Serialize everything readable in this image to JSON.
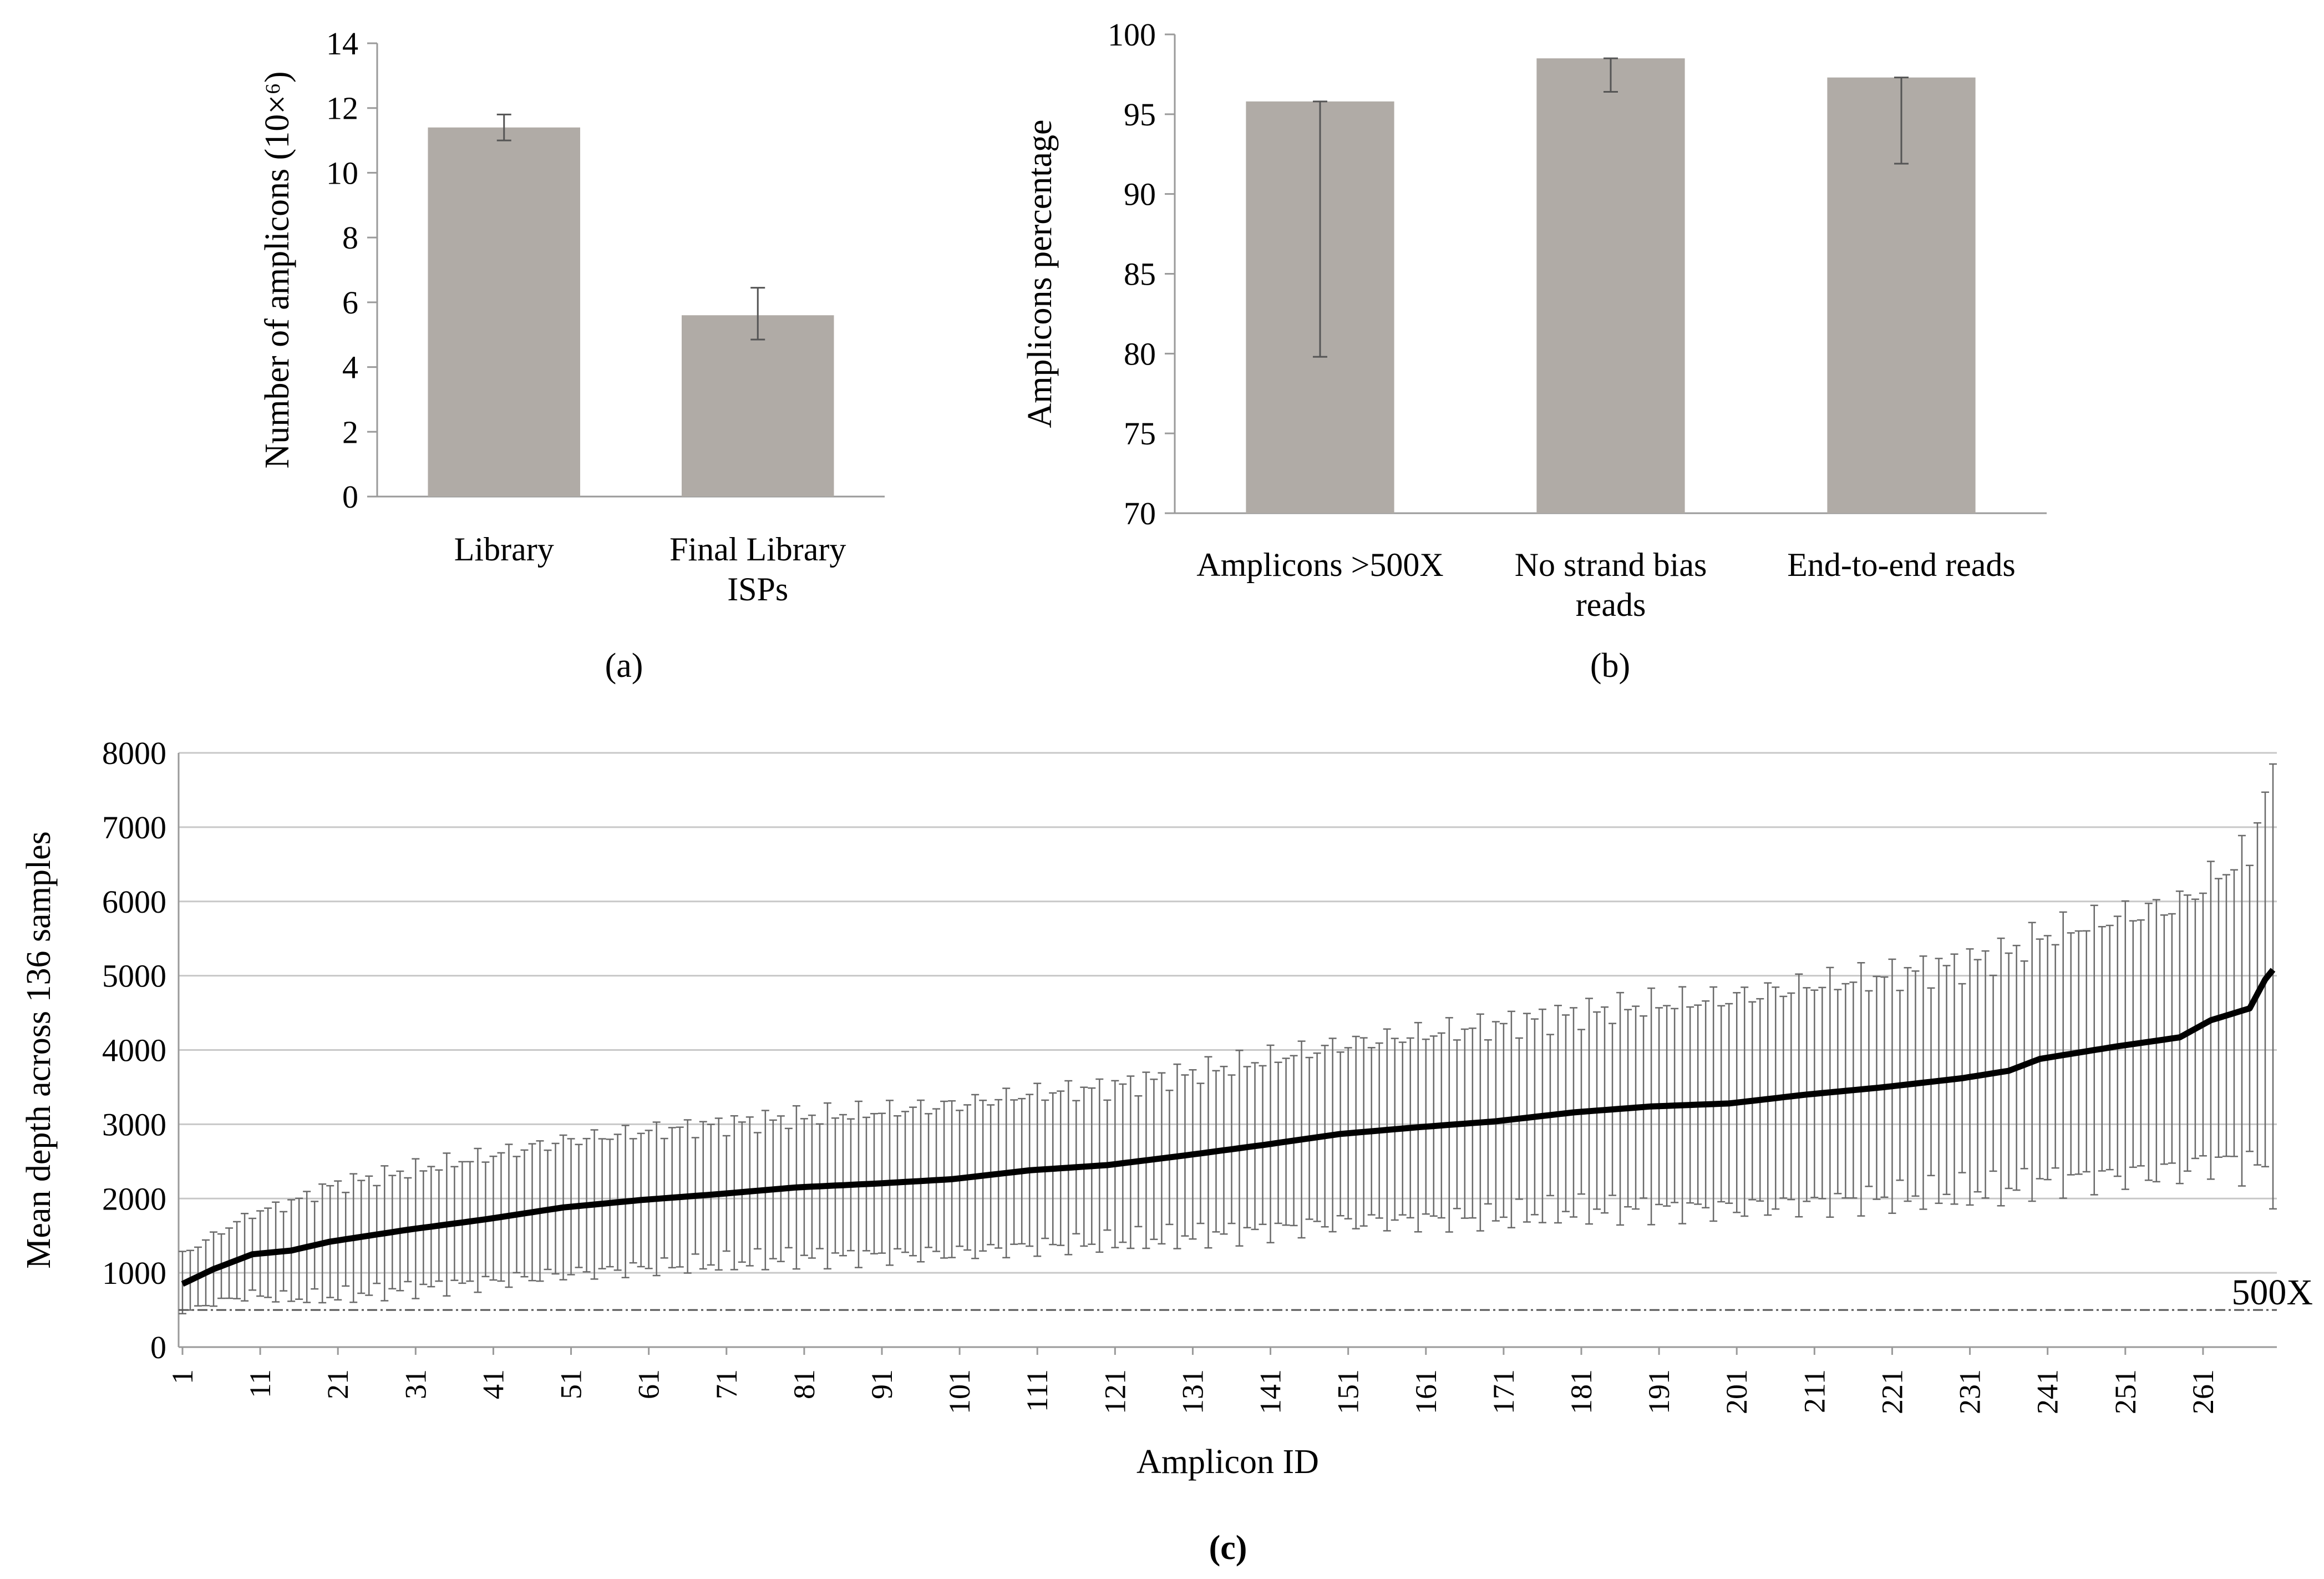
{
  "chart_data": [
    {
      "panel": "a",
      "type": "bar",
      "categories": [
        "Library",
        "Final Library\nISPs"
      ],
      "values": [
        11.4,
        5.6
      ],
      "error": [
        [
          11.0,
          11.8
        ],
        [
          4.85,
          6.45
        ]
      ],
      "ylabel": "Number of amplicons (10×⁶)",
      "ylim": [
        0,
        14
      ],
      "yticks": [
        0,
        2,
        4,
        6,
        8,
        10,
        12,
        14
      ],
      "grid": false,
      "bar_color": "#b0aba6",
      "panel_label": "(a)"
    },
    {
      "panel": "b",
      "type": "bar",
      "categories": [
        "Amplicons >500X",
        "No strand bias\nreads",
        "End-to-end reads"
      ],
      "values": [
        95.8,
        98.5,
        97.3
      ],
      "error": [
        [
          79.8,
          95.8
        ],
        [
          96.4,
          98.5
        ],
        [
          91.9,
          97.3
        ]
      ],
      "ylabel": "Amplicons percentage",
      "ylim": [
        70,
        100
      ],
      "yticks": [
        70,
        75,
        80,
        85,
        90,
        95,
        100
      ],
      "grid": false,
      "bar_color": "#b0aba6",
      "panel_label": "(b)"
    },
    {
      "panel": "c",
      "type": "line",
      "x_range": [
        1,
        270
      ],
      "xticks": [
        1,
        11,
        21,
        31,
        41,
        51,
        61,
        71,
        81,
        91,
        101,
        111,
        121,
        131,
        141,
        151,
        161,
        171,
        181,
        191,
        201,
        211,
        221,
        231,
        241,
        251,
        261
      ],
      "anchors_x": [
        1,
        5,
        10,
        15,
        20,
        30,
        40,
        50,
        60,
        70,
        80,
        90,
        100,
        110,
        120,
        130,
        140,
        150,
        160,
        170,
        180,
        190,
        200,
        210,
        220,
        230,
        236,
        240,
        250,
        258,
        262,
        267,
        269,
        270
      ],
      "anchors_y": [
        850,
        1050,
        1250,
        1300,
        1420,
        1580,
        1720,
        1880,
        1980,
        2060,
        2150,
        2200,
        2260,
        2380,
        2450,
        2580,
        2720,
        2870,
        2960,
        3040,
        3160,
        3240,
        3280,
        3400,
        3500,
        3620,
        3720,
        3880,
        4050,
        4170,
        4400,
        4560,
        4950,
        5080
      ],
      "error_sd_anchors_y": [
        400,
        450,
        550,
        650,
        750,
        800,
        850,
        900,
        920,
        940,
        950,
        970,
        1000,
        1030,
        1050,
        1100,
        1150,
        1200,
        1250,
        1300,
        1330,
        1380,
        1420,
        1470,
        1500,
        1550,
        1600,
        1650,
        1750,
        1800,
        1900,
        2100,
        2600,
        2800
      ],
      "xlabel": "Amplicon ID",
      "ylabel": "Mean depth across 136 samples",
      "ylim": [
        0,
        8000
      ],
      "yticks": [
        0,
        1000,
        2000,
        3000,
        4000,
        5000,
        6000,
        7000,
        8000
      ],
      "grid": true,
      "threshold": {
        "value": 500,
        "label": "500X"
      },
      "panel_label": "(c)"
    }
  ]
}
